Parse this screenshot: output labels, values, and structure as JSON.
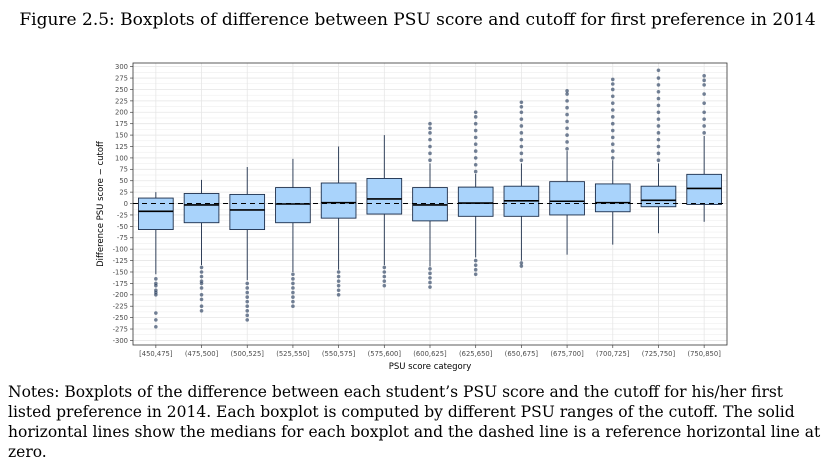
{
  "figure": {
    "caption": "Figure 2.5: Boxplots of difference between PSU score and cutoff for first preference in 2014"
  },
  "notes": "Notes: Boxplots of the difference between each student’s PSU score and the cutoff for his/her first listed preference in 2014. Each boxplot is computed by different PSU ranges of the cutoff. The solid horizontal lines show the medians for each boxplot and the dashed line is a reference horizontal line at zero.",
  "colors": {
    "box_fill": "#a9d3fb",
    "box_stroke": "#1c2e4a",
    "outlier": "#2a3f60",
    "grid": "#e6e6e6",
    "panel_border": "#333333",
    "zero_line": "#000000"
  },
  "chart_data": {
    "type": "box",
    "xlabel": "PSU score category",
    "ylabel": "Difference PSU score − cutoff",
    "ylim": [
      -310,
      308
    ],
    "yticks": [
      300,
      275,
      250,
      225,
      200,
      175,
      150,
      125,
      100,
      75,
      50,
      25,
      0,
      -25,
      -50,
      -75,
      -100,
      -125,
      -150,
      -175,
      -200,
      -225,
      -250,
      -275,
      -300
    ],
    "grid": true,
    "reference_line": {
      "y": 0,
      "style": "dashed"
    },
    "categories": [
      "[450,475]",
      "(475,500]",
      "(500,525]",
      "(525,550]",
      "(550,575]",
      "(575,600]",
      "(600,625]",
      "(625,650]",
      "(650,675]",
      "(675,700]",
      "(700,725]",
      "(725,750]",
      "(750,850]"
    ],
    "boxes": [
      {
        "q1": -57,
        "median": -17,
        "q3": 12,
        "whisker_low": -155,
        "whisker_high": 25,
        "outliers": [
          -165,
          -175,
          -180,
          -190,
          -195,
          -200,
          -240,
          -255,
          -270
        ]
      },
      {
        "q1": -42,
        "median": -3,
        "q3": 22,
        "whisker_low": -135,
        "whisker_high": 52,
        "outliers": [
          -140,
          -150,
          -160,
          -170,
          -175,
          -185,
          -200,
          -210,
          -225,
          -235
        ]
      },
      {
        "q1": -57,
        "median": -14,
        "q3": 20,
        "whisker_low": -168,
        "whisker_high": 80,
        "outliers": [
          -175,
          -185,
          -195,
          -205,
          -215,
          -225,
          -235,
          -245,
          -255
        ]
      },
      {
        "q1": -42,
        "median": -1,
        "q3": 35,
        "whisker_low": -150,
        "whisker_high": 98,
        "outliers": [
          -155,
          -165,
          -175,
          -185,
          -195,
          -205,
          -215,
          -225
        ]
      },
      {
        "q1": -32,
        "median": 2,
        "q3": 45,
        "whisker_low": -145,
        "whisker_high": 125,
        "outliers": [
          -150,
          -160,
          -170,
          -180,
          -190,
          -200
        ]
      },
      {
        "q1": -23,
        "median": 10,
        "q3": 55,
        "whisker_low": -135,
        "whisker_high": 150,
        "outliers": [
          -140,
          -150,
          -160,
          -170,
          -180
        ]
      },
      {
        "q1": -38,
        "median": -3,
        "q3": 35,
        "whisker_low": -138,
        "whisker_high": 88,
        "outliers": [
          -143,
          -153,
          -163,
          -173,
          -183,
          95,
          110,
          125,
          140,
          155,
          165,
          175
        ]
      },
      {
        "q1": -28,
        "median": 1,
        "q3": 36,
        "whisker_low": -118,
        "whisker_high": 65,
        "outliers": [
          -125,
          -135,
          -145,
          -155,
          70,
          85,
          100,
          115,
          130,
          145,
          160,
          175,
          190,
          200
        ]
      },
      {
        "q1": -28,
        "median": 6,
        "q3": 38,
        "whisker_low": -125,
        "whisker_high": 88,
        "outliers": [
          -130,
          -137,
          95,
          110,
          125,
          140,
          155,
          170,
          185,
          200,
          212,
          222
        ]
      },
      {
        "q1": -25,
        "median": 5,
        "q3": 48,
        "whisker_low": -112,
        "whisker_high": 115,
        "outliers": [
          120,
          135,
          150,
          165,
          180,
          195,
          210,
          225,
          240,
          247
        ]
      },
      {
        "q1": -18,
        "median": 2,
        "q3": 43,
        "whisker_low": -90,
        "whisker_high": 95,
        "outliers": [
          100,
          115,
          130,
          145,
          160,
          175,
          190,
          205,
          220,
          235,
          250,
          262,
          272
        ]
      },
      {
        "q1": -7,
        "median": 7,
        "q3": 38,
        "whisker_low": -65,
        "whisker_high": 88,
        "outliers": [
          95,
          110,
          125,
          140,
          155,
          170,
          185,
          200,
          215,
          230,
          245,
          260,
          275,
          292
        ]
      },
      {
        "q1": -2,
        "median": 33,
        "q3": 64,
        "whisker_low": -40,
        "whisker_high": 148,
        "outliers": [
          155,
          170,
          185,
          200,
          220,
          240,
          260,
          270,
          280
        ]
      }
    ]
  }
}
